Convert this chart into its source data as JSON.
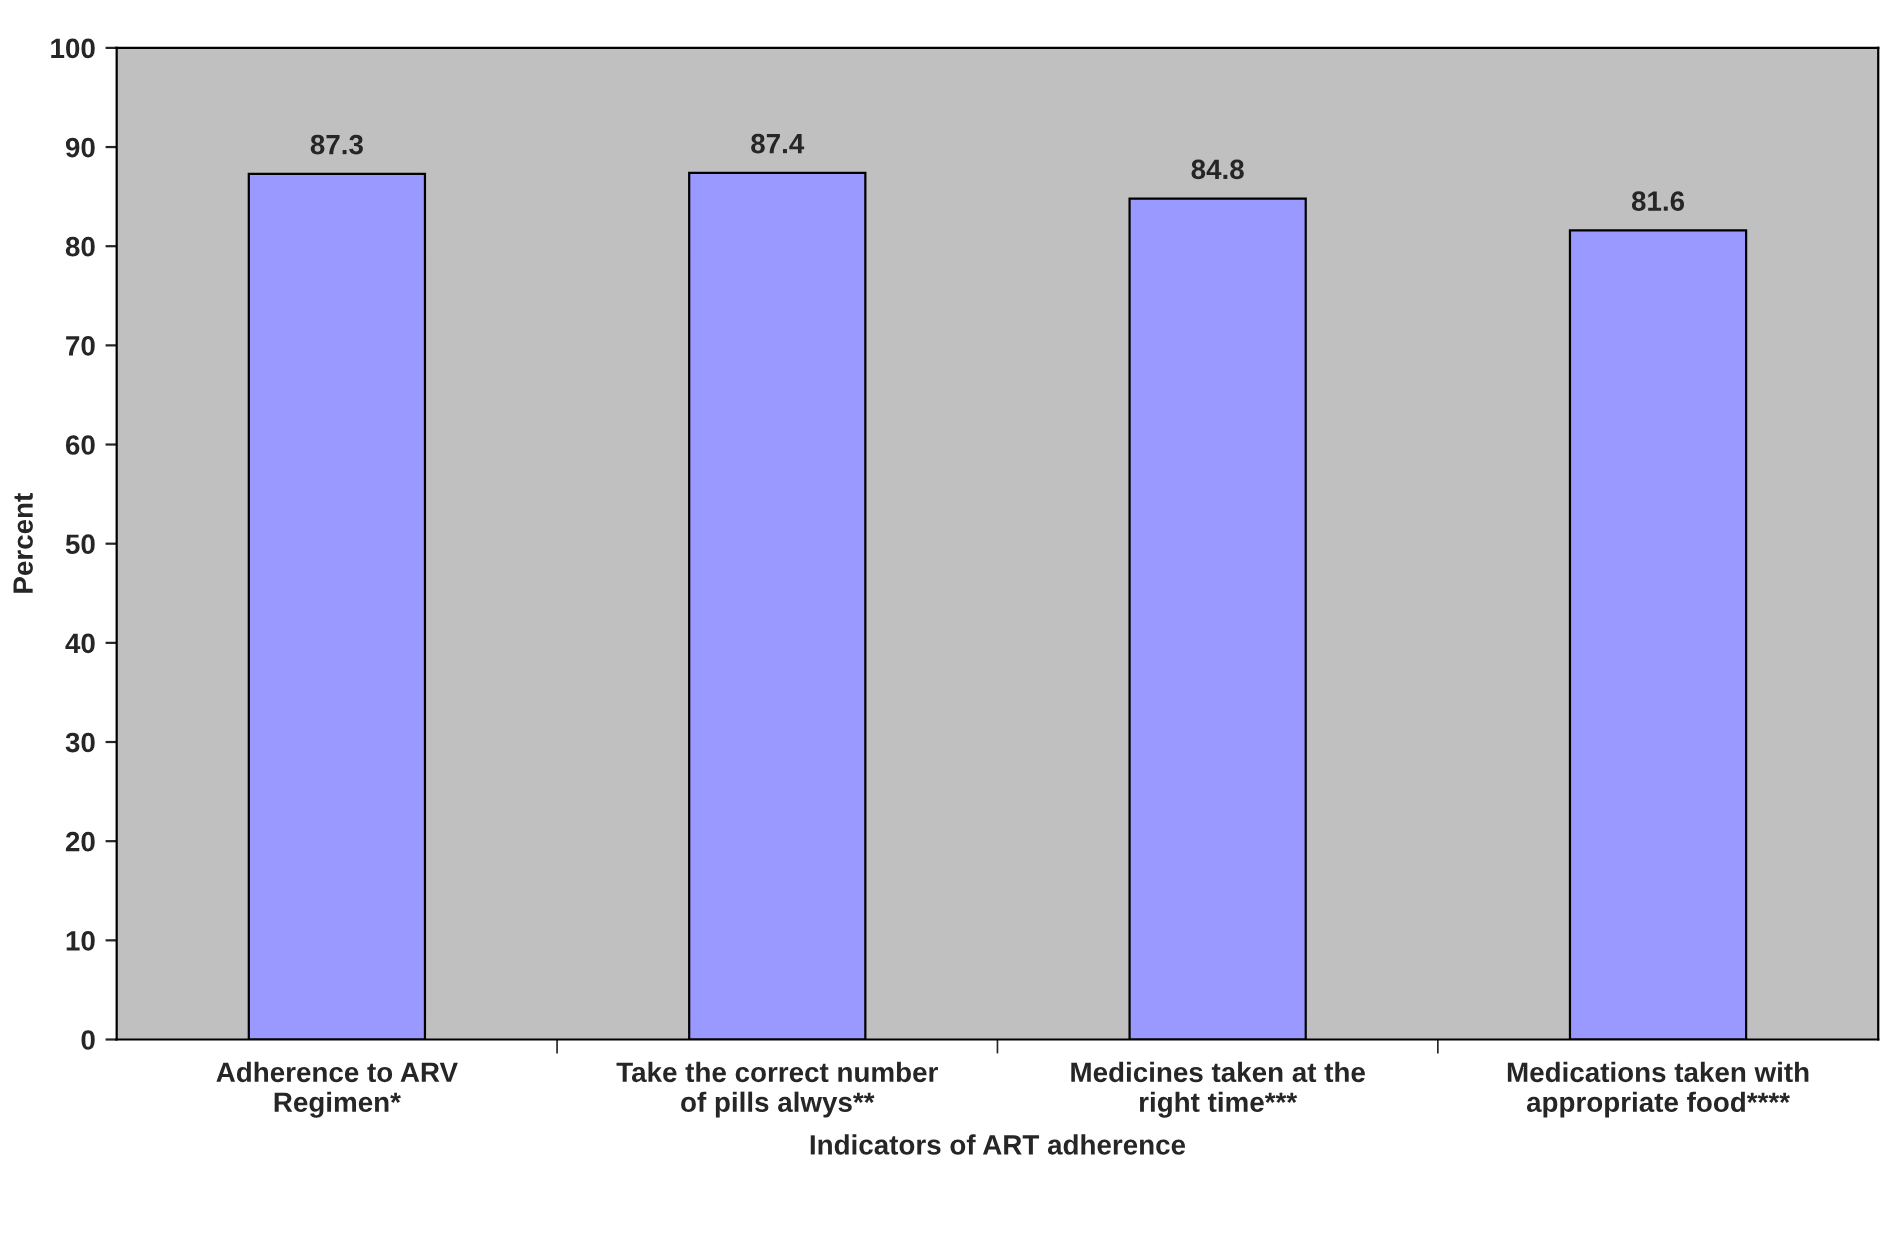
{
  "chart_data": {
    "type": "bar",
    "xlabel": "Indicators of ART adherence",
    "ylabel": "Percent",
    "categories": [
      "Adherence to ARV\nRegimen*",
      "Take the correct number\nof pills alwys**",
      "Medicines taken at the\nright time***",
      "Medications taken with\nappropriate food****"
    ],
    "values": [
      87.3,
      87.4,
      84.8,
      81.6
    ],
    "color": "#9999ff",
    "ylim": [
      0,
      100
    ],
    "yticks": [
      0,
      10,
      20,
      30,
      40,
      50,
      60,
      70,
      80,
      90,
      100
    ],
    "grid": false,
    "data_labels": true
  }
}
